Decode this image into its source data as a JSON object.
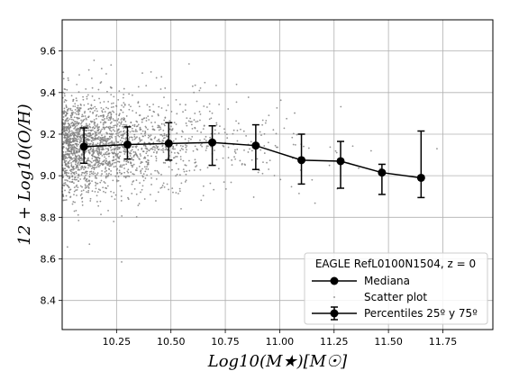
{
  "chart_data": {
    "type": "scatter",
    "xlabel": "Log10(M★)[M☉]",
    "ylabel": "12 + Log10(O/H)",
    "xlim": [
      10.0,
      11.98
    ],
    "ylim": [
      8.26,
      9.75
    ],
    "xticks": [
      "10.25",
      "10.50",
      "10.75",
      "11.00",
      "11.25",
      "11.50",
      "11.75"
    ],
    "yticks": [
      "8.4",
      "8.6",
      "8.8",
      "9.0",
      "9.2",
      "9.4",
      "9.6"
    ],
    "grid": true,
    "legend": {
      "title": "EAGLE RefL0100N1504,  z = 0",
      "placement": "lower-right",
      "entries": [
        "Mediana",
        "Scatter plot",
        "Percentiles 25º y 75º"
      ]
    },
    "series": [
      {
        "name": "Mediana",
        "type": "line",
        "color": "#000000",
        "x": [
          10.1,
          10.3,
          10.49,
          10.69,
          10.89,
          11.1,
          11.28,
          11.47,
          11.65
        ],
        "y": [
          9.14,
          9.15,
          9.155,
          9.16,
          9.145,
          9.075,
          9.07,
          9.015,
          8.99
        ]
      },
      {
        "name": "Percentiles 25º y 75º",
        "type": "errorbar",
        "color": "#000000",
        "x": [
          10.1,
          10.3,
          10.49,
          10.69,
          10.89,
          11.1,
          11.28,
          11.47,
          11.65
        ],
        "lower": [
          9.06,
          9.08,
          9.075,
          9.05,
          9.03,
          8.96,
          8.94,
          8.91,
          8.895
        ],
        "upper": [
          9.23,
          9.235,
          9.255,
          9.24,
          9.245,
          9.2,
          9.165,
          9.055,
          9.215
        ]
      },
      {
        "name": "Scatter plot",
        "type": "scatter",
        "color": "#808080",
        "note_count": 2200
      }
    ]
  }
}
